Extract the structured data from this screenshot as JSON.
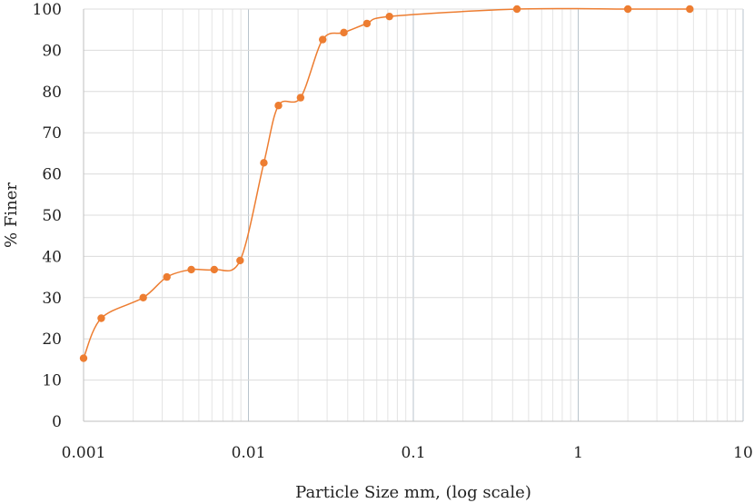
{
  "chart_data": {
    "type": "scatter",
    "title": "",
    "xlabel": "Particle Size mm, (log scale)",
    "ylabel": "% Finer",
    "x_scale": "log",
    "xlim": [
      0.001,
      10
    ],
    "ylim": [
      0,
      100
    ],
    "x_ticks": [
      "0.001",
      "0.01",
      "0.1",
      "1",
      "10"
    ],
    "y_ticks": [
      "0",
      "10",
      "20",
      "30",
      "40",
      "50",
      "60",
      "70",
      "80",
      "90",
      "100"
    ],
    "grid": true,
    "legend": "none",
    "series": [
      {
        "color": "#ED7D31",
        "marker": "circle",
        "line": "smooth",
        "x": [
          0.001,
          0.00128,
          0.0023,
          0.0032,
          0.0045,
          0.0062,
          0.0089,
          0.0124,
          0.0152,
          0.0207,
          0.0282,
          0.0379,
          0.0523,
          0.0716,
          0.425,
          2.0,
          4.75
        ],
        "y": [
          15.3,
          25,
          30,
          35,
          36.8,
          36.8,
          39,
          62.7,
          76.6,
          78.5,
          92.6,
          94.3,
          96.5,
          98.2,
          100,
          100,
          100
        ]
      }
    ]
  }
}
